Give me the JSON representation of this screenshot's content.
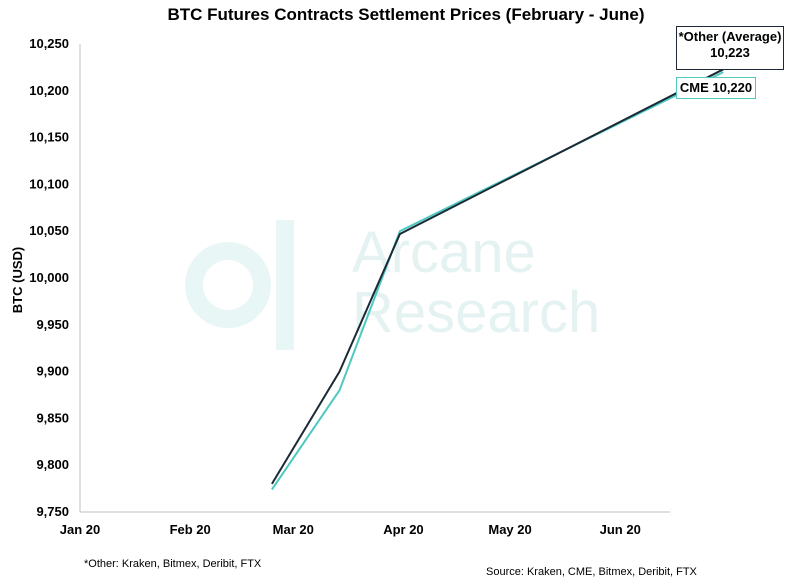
{
  "chart_data": {
    "type": "line",
    "title": "BTC Futures Contracts Settlement Prices (February - June)",
    "ylabel": "BTC (USD)",
    "xlabel": "",
    "ylim": [
      9750,
      10250
    ],
    "yticks": [
      9750,
      9800,
      9850,
      9900,
      9950,
      10000,
      10050,
      10100,
      10150,
      10200,
      10250
    ],
    "ytick_labels": [
      "9,750",
      "9,800",
      "9,850",
      "9,900",
      "9,950",
      "10,000",
      "10,050",
      "10,100",
      "10,150",
      "10,200",
      "10,250"
    ],
    "xlim": [
      "2020-01-01",
      "2020-06-15"
    ],
    "xticks": [
      "2020-01-01",
      "2020-02-01",
      "2020-03-01",
      "2020-04-01",
      "2020-05-01",
      "2020-06-01"
    ],
    "xtick_labels": [
      "Jan 20",
      "Feb 20",
      "Mar 20",
      "Apr 20",
      "May 20",
      "Jun 20"
    ],
    "series": [
      {
        "name": "*Other (Average)",
        "color": "#1b2a36",
        "points": [
          [
            "2020-02-24",
            9780
          ],
          [
            "2020-03-14",
            9900
          ],
          [
            "2020-03-31",
            10047
          ],
          [
            "2020-06-30",
            10223
          ]
        ]
      },
      {
        "name": "CME",
        "color": "#4fc9c0",
        "points": [
          [
            "2020-02-24",
            9774
          ],
          [
            "2020-03-14",
            9880
          ],
          [
            "2020-03-31",
            10050
          ],
          [
            "2020-06-30",
            10220
          ]
        ]
      }
    ],
    "annotations": {
      "other_label": "*Other (Average)",
      "other_value": "10,223",
      "cme_label": "CME 10,220"
    },
    "grid": false,
    "watermark": [
      "Arcane",
      "Research"
    ]
  },
  "footnotes": {
    "other_note": "*Other: Kraken, Bitmex, Deribit, FTX",
    "source": "Source: Kraken, CME, Bitmex, Deribit, FTX"
  }
}
